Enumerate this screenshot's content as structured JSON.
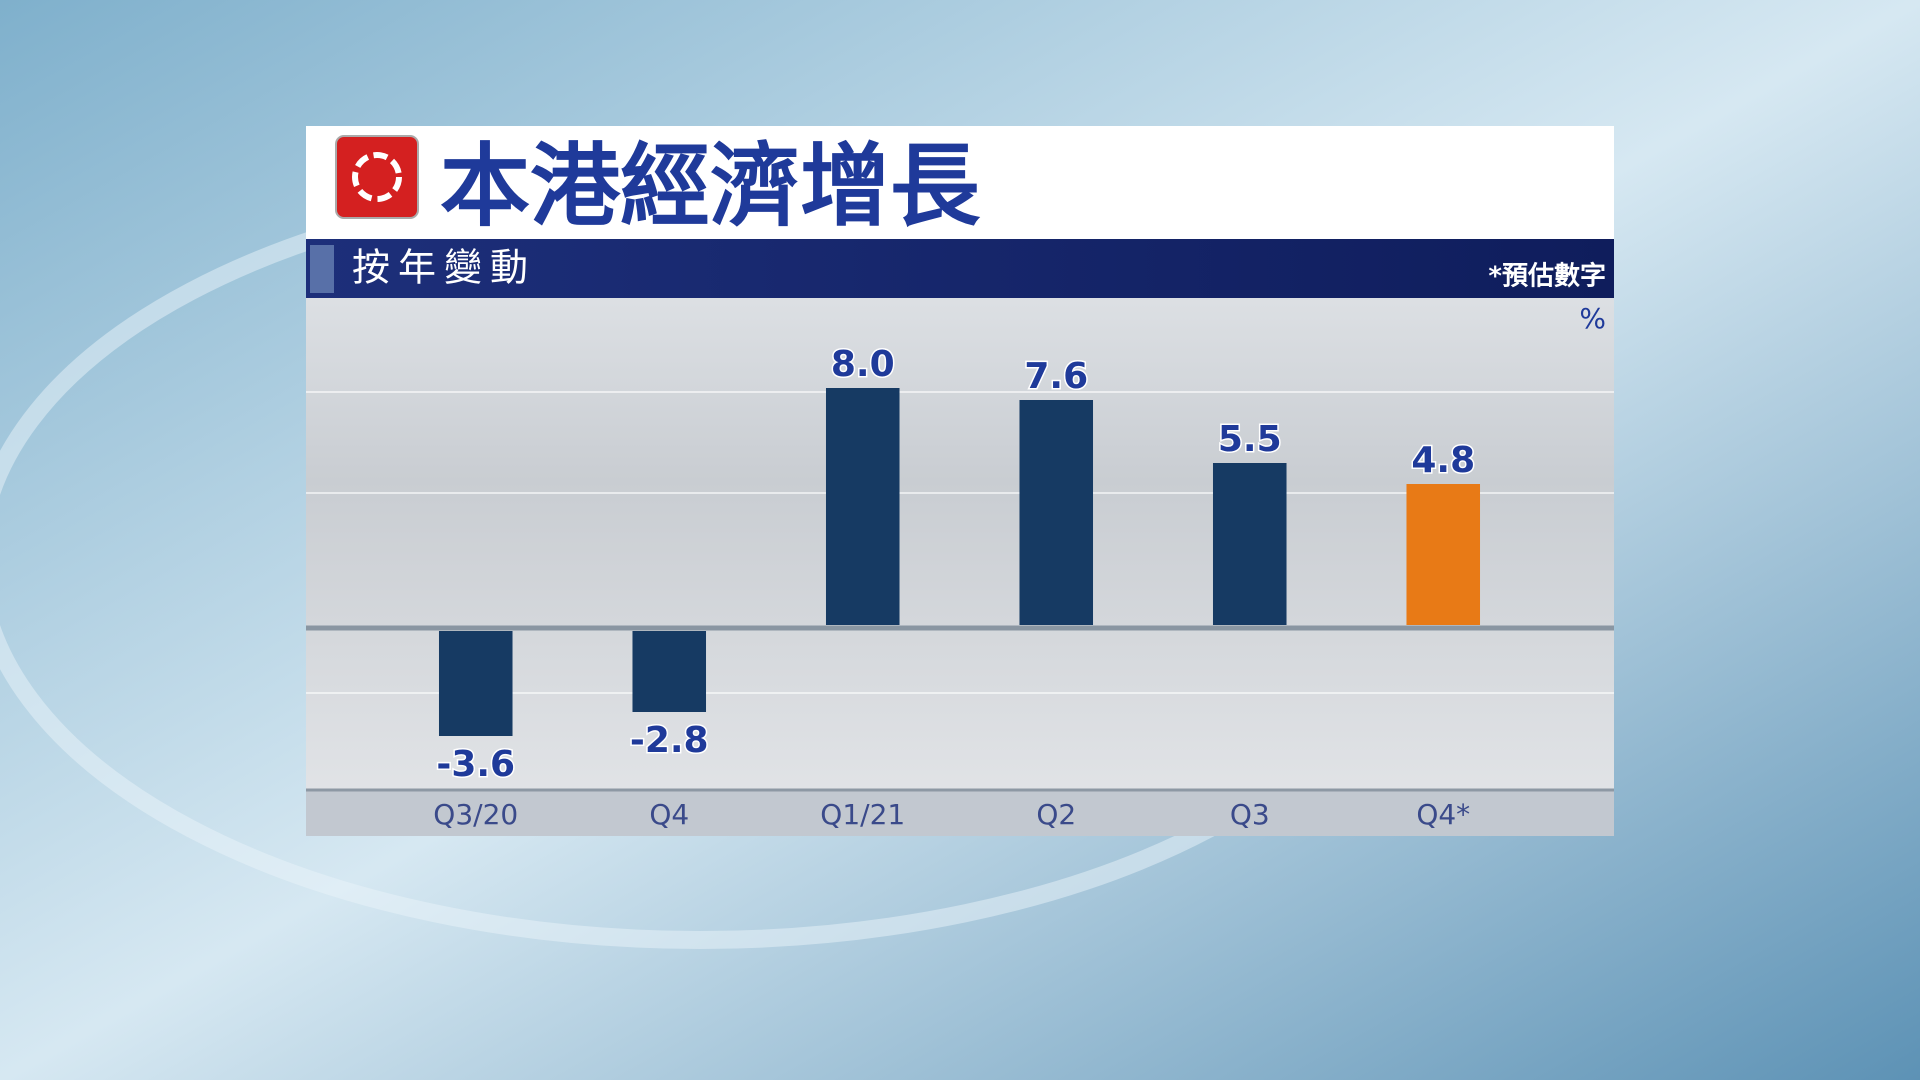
{
  "chart_data": {
    "type": "bar",
    "title": "本港經濟增長",
    "subtitle": "按年變動",
    "note": "*預估數字",
    "unit": "%",
    "categories": [
      "Q3/20",
      "Q4",
      "Q1/21",
      "Q2",
      "Q3",
      "Q4*"
    ],
    "values": [
      -3.6,
      -2.8,
      8.0,
      7.6,
      5.5,
      4.8
    ],
    "value_labels": [
      "-3.6",
      "-2.8",
      "8.0",
      "7.6",
      "5.5",
      "4.8"
    ],
    "colors": [
      "#163a63",
      "#163a63",
      "#163a63",
      "#163a63",
      "#163a63",
      "#e87a16"
    ],
    "ylim": [
      -5.4,
      11
    ]
  }
}
